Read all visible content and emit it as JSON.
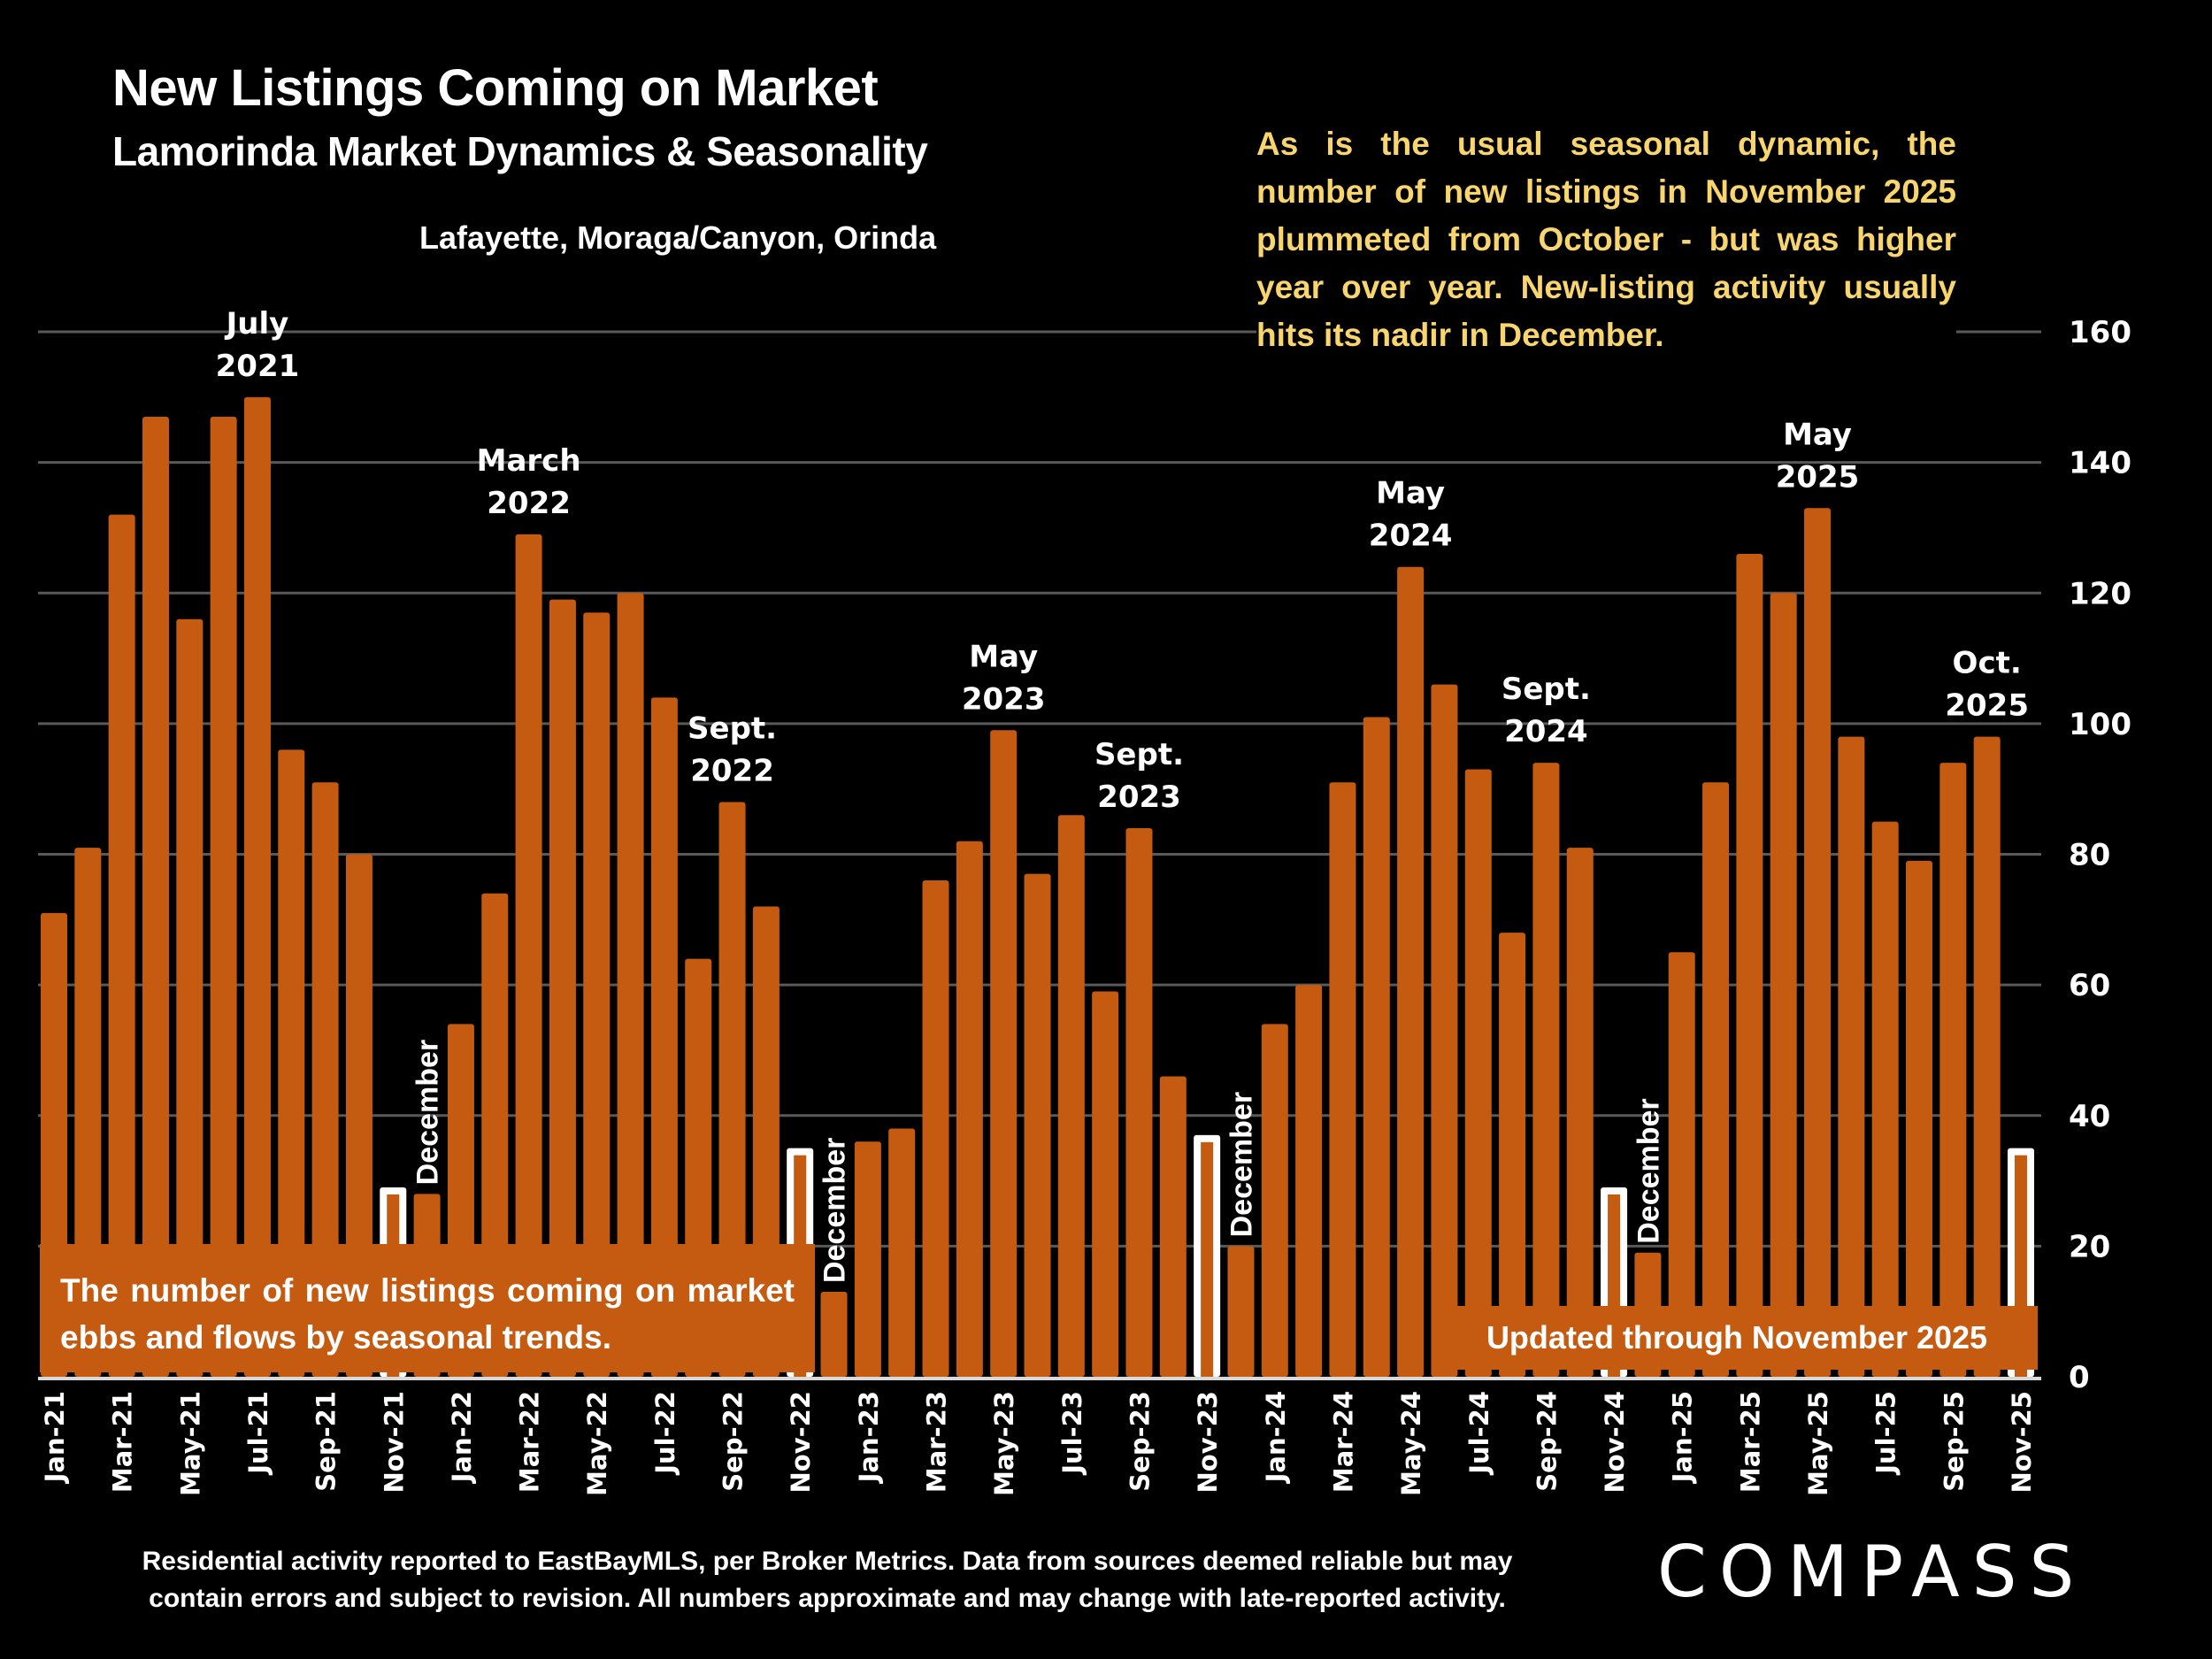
{
  "header": {
    "title": "New Listings Coming on Market",
    "subtitle": "Lamorinda Market Dynamics & Seasonality",
    "region": "Lafayette, Moraga/Canyon, Orinda"
  },
  "commentary": "As is the usual seasonal dynamic, the number of new listings in November 2025 plummeted from October - but was higher year over year. New-listing activity usually hits its nadir in December.",
  "left_note": "The number of new listings coming on market ebbs and flows by seasonal trends.",
  "right_note": "Updated through November 2025",
  "footer": {
    "line1": "Residential activity reported to EastBayMLS, per Broker Metrics. Data from sources deemed reliable but may",
    "line2": "contain errors and subject to revision. All numbers approximate and may change with late-reported activity."
  },
  "logo": "COMPASS",
  "colors": {
    "bar": "#c55a11",
    "highlight_outline": "#ffffff",
    "commentary_text": "#f9d56e",
    "gridline": "#595959",
    "background": "#000000"
  },
  "chart_data": {
    "type": "bar",
    "title": "New Listings Coming on Market",
    "subtitle": "Lamorinda Market Dynamics & Seasonality",
    "xlabel": "",
    "ylabel": "",
    "ylim": [
      0,
      160
    ],
    "yticks": [
      0,
      20,
      40,
      60,
      80,
      100,
      120,
      140,
      160
    ],
    "y_axis_side": "right",
    "grid": true,
    "categories": [
      "Jan-21",
      "Feb-21",
      "Mar-21",
      "Apr-21",
      "May-21",
      "Jun-21",
      "Jul-21",
      "Aug-21",
      "Sep-21",
      "Oct-21",
      "Nov-21",
      "Dec-21",
      "Jan-22",
      "Feb-22",
      "Mar-22",
      "Apr-22",
      "May-22",
      "Jun-22",
      "Jul-22",
      "Aug-22",
      "Sep-22",
      "Oct-22",
      "Nov-22",
      "Dec-22",
      "Jan-23",
      "Feb-23",
      "Mar-23",
      "Apr-23",
      "May-23",
      "Jun-23",
      "Jul-23",
      "Aug-23",
      "Sep-23",
      "Oct-23",
      "Nov-23",
      "Dec-23",
      "Jan-24",
      "Feb-24",
      "Mar-24",
      "Apr-24",
      "May-24",
      "Jun-24",
      "Jul-24",
      "Aug-24",
      "Sep-24",
      "Oct-24",
      "Nov-24",
      "Dec-24",
      "Jan-25",
      "Feb-25",
      "Mar-25",
      "Apr-25",
      "May-25",
      "Jun-25",
      "Jul-25",
      "Aug-25",
      "Sep-25",
      "Oct-25",
      "Nov-25"
    ],
    "xtick_labels": [
      "Jan-21",
      "Mar-21",
      "May-21",
      "Jul-21",
      "Sep-21",
      "Nov-21",
      "Jan-22",
      "Mar-22",
      "May-22",
      "Jul-22",
      "Sep-22",
      "Nov-22",
      "Jan-23",
      "Mar-23",
      "May-23",
      "Jul-23",
      "Sep-23",
      "Nov-23",
      "Jan-24",
      "Mar-24",
      "May-24",
      "Jul-24",
      "Sep-24",
      "Nov-24",
      "Jan-25",
      "Mar-25",
      "May-25",
      "Jul-25",
      "Sep-25",
      "Nov-25"
    ],
    "series": [
      {
        "name": "New Listings",
        "values": [
          71,
          81,
          132,
          147,
          116,
          147,
          150,
          96,
          91,
          80,
          29,
          28,
          54,
          74,
          129,
          119,
          117,
          120,
          104,
          64,
          88,
          72,
          35,
          13,
          36,
          38,
          76,
          82,
          99,
          77,
          86,
          59,
          84,
          46,
          37,
          20,
          54,
          60,
          91,
          101,
          124,
          106,
          93,
          68,
          94,
          81,
          29,
          19,
          65,
          91,
          126,
          120,
          133,
          98,
          85,
          79,
          94,
          98,
          35
        ]
      }
    ],
    "highlighted_categories": [
      "Nov-21",
      "Nov-22",
      "Nov-23",
      "Nov-24",
      "Nov-25"
    ],
    "annotations": [
      {
        "category": "Jul-21",
        "lines": [
          "July",
          "2021"
        ]
      },
      {
        "category": "Mar-22",
        "lines": [
          "March",
          "2022"
        ]
      },
      {
        "category": "Sep-22",
        "lines": [
          "Sept.",
          "2022"
        ]
      },
      {
        "category": "May-23",
        "lines": [
          "May",
          "2023"
        ]
      },
      {
        "category": "Sep-23",
        "lines": [
          "Sept.",
          "2023"
        ]
      },
      {
        "category": "May-24",
        "lines": [
          "May",
          "2024"
        ]
      },
      {
        "category": "Sep-24",
        "lines": [
          "Sept.",
          "2024"
        ]
      },
      {
        "category": "May-25",
        "lines": [
          "May",
          "2025"
        ]
      },
      {
        "category": "Oct-25",
        "lines": [
          "Oct.",
          "2025"
        ]
      }
    ],
    "vertical_annotations": [
      {
        "category": "Dec-21",
        "text": "December"
      },
      {
        "category": "Dec-22",
        "text": "December"
      },
      {
        "category": "Dec-23",
        "text": "December"
      },
      {
        "category": "Dec-24",
        "text": "December"
      }
    ]
  }
}
